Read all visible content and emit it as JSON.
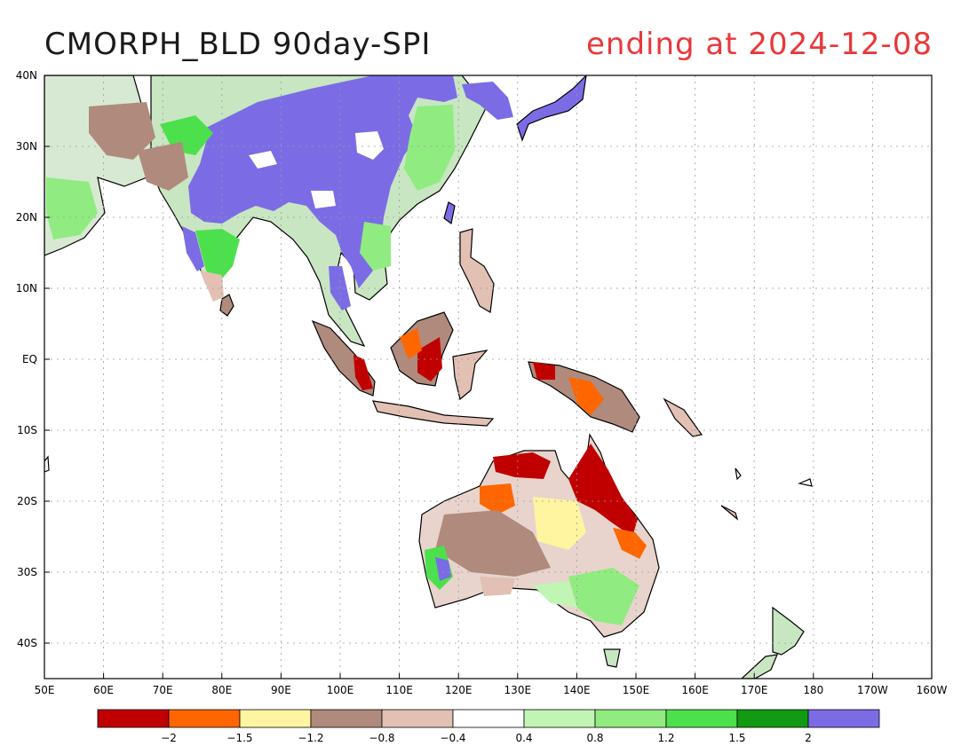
{
  "title": "CMORPH_BLD 90day-SPI",
  "subtitle": "ending at 2024-12-08",
  "map": {
    "lon_range": [
      "50E",
      "160W"
    ],
    "lat_range": [
      "45S",
      "40N"
    ],
    "grid": "dotted",
    "lat_labels": [
      "40N",
      "30N",
      "20N",
      "10N",
      "EQ",
      "10S",
      "20S",
      "30S",
      "40S"
    ],
    "lon_labels": [
      "50E",
      "60E",
      "70E",
      "80E",
      "90E",
      "100E",
      "110E",
      "120E",
      "130E",
      "140E",
      "150E",
      "160E",
      "170E",
      "180",
      "170W",
      "160W"
    ]
  },
  "colorbar": {
    "colors": [
      "#c00000",
      "#ff6600",
      "#fff4a0",
      "#b08a7c",
      "#e2c0b4",
      "#ffffff",
      "#c0f5b4",
      "#90ec80",
      "#4de04d",
      "#129a12",
      "#7b6ce6"
    ],
    "labels": [
      "−2",
      "−1.5",
      "−1.2",
      "−0.8",
      "−0.4",
      "0.4",
      "0.8",
      "1.2",
      "1.5",
      "2"
    ]
  }
}
